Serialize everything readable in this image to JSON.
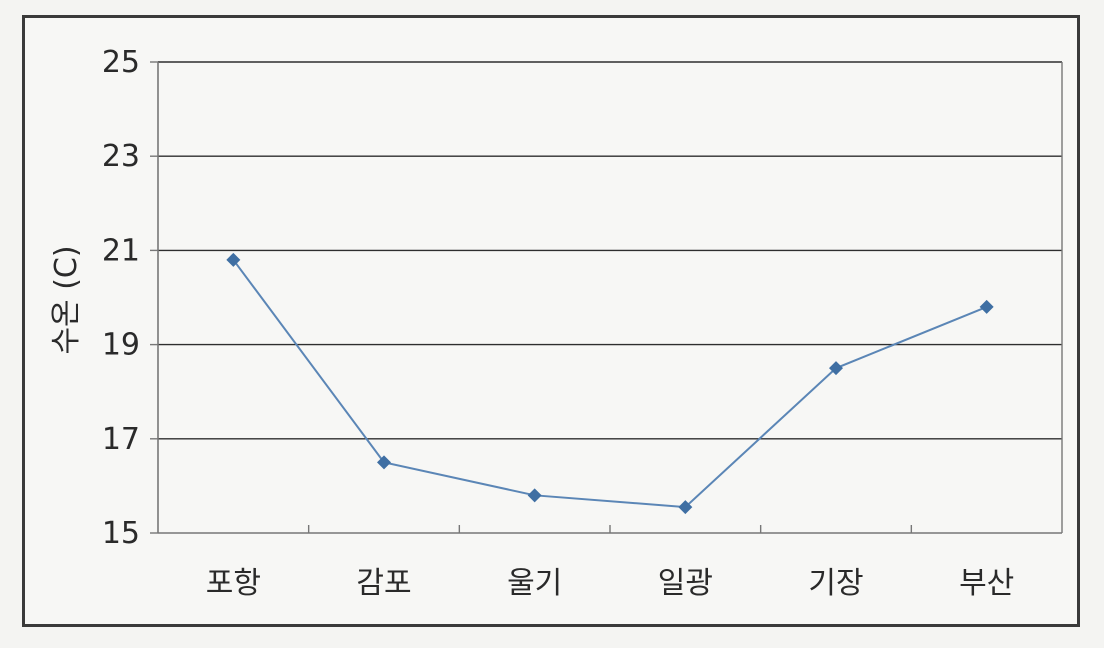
{
  "chart_data": {
    "type": "line",
    "categories": [
      "포항",
      "감포",
      "울기",
      "일광",
      "기장",
      "부산"
    ],
    "series": [
      {
        "values": [
          20.8,
          16.5,
          15.8,
          15.55,
          18.5,
          19.8
        ]
      }
    ],
    "ylabel": "수온 (C)",
    "xlabel": "",
    "title": "",
    "ylim": [
      15,
      25
    ],
    "yticks": [
      15,
      17,
      19,
      21,
      23,
      25
    ],
    "grid": true,
    "legend": "none",
    "colors": {
      "line": "#5b86b6",
      "marker": "#3f6fa3",
      "grid": "#2e2e2e",
      "axis": "#777777"
    }
  }
}
